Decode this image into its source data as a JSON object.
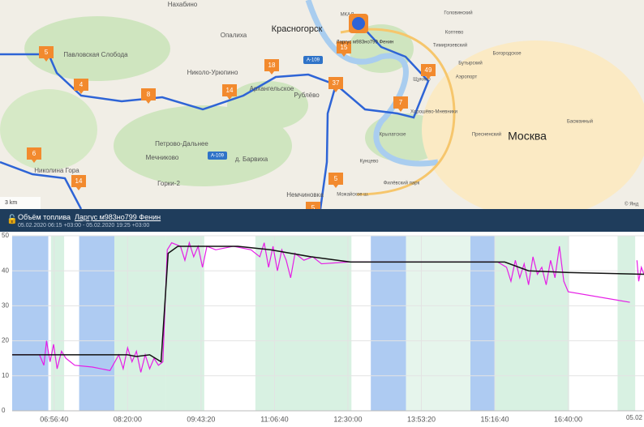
{
  "map": {
    "places": [
      "Нахабино",
      "Красногорск",
      "Павловская Слобода",
      "Опалиха",
      "Николо-Урюпино",
      "Архангельское",
      "Рублёво",
      "Петрово-Дальнее",
      "Мечниково",
      "д. Барвиха",
      "Горки-2",
      "Николина Гора",
      "Немчиновка",
      "Москва",
      "Щукино",
      "Аэропорт",
      "Тимирязевский",
      "Бутырский",
      "Богородское",
      "Пресненский",
      "Басманный",
      "Хорошёво-Мневники",
      "Крылатское",
      "Кунцево",
      "Головинский",
      "Коптево",
      "Филёвский парк"
    ],
    "roads": [
      "A-109",
      "A-109",
      "МКАД",
      "Можайское ш."
    ],
    "markers": [
      "5",
      "4",
      "8",
      "14",
      "18",
      "15",
      "37",
      "49",
      "7",
      "6",
      "14",
      "5",
      "5"
    ],
    "vehicle_label": "Ларгус м983но799 Фенин",
    "scale_label": "3 km",
    "copyright": "© Янд"
  },
  "chart_header": {
    "title": "Объём топлива",
    "vehicle": "Ларгус м983но799 Фенин",
    "period": "05.02.2020 06:15 +03:00 - 05.02.2020 19:25 +03:00"
  },
  "chart_data": {
    "type": "line",
    "xlim": [
      "06:09:00",
      "18:06:00"
    ],
    "ylim": [
      0,
      50
    ],
    "yticks": [
      0,
      10,
      20,
      30,
      40,
      50
    ],
    "xticks": [
      "06:56:40",
      "08:20:00",
      "09:43:20",
      "11:06:40",
      "12:30:00",
      "13:53:20",
      "15:16:40",
      "16:40:00"
    ],
    "date_label": "05.02",
    "grid": true,
    "bands": [
      {
        "start": "06:09:00",
        "end": "06:50:00",
        "color": "#aecbf2"
      },
      {
        "start": "06:53:00",
        "end": "07:08:00",
        "color": "#d8f1e2"
      },
      {
        "start": "07:25:00",
        "end": "08:05:00",
        "color": "#aecbf2"
      },
      {
        "start": "08:05:00",
        "end": "09:03:00",
        "color": "#d8f1e2"
      },
      {
        "start": "09:03:00",
        "end": "09:47:00",
        "color": "#d8f1e2"
      },
      {
        "start": "10:45:00",
        "end": "12:34:00",
        "color": "#d8f1e2"
      },
      {
        "start": "12:56:00",
        "end": "13:36:00",
        "color": "#aecbf2"
      },
      {
        "start": "13:36:00",
        "end": "14:49:00",
        "color": "#e6f5ec"
      },
      {
        "start": "14:49:00",
        "end": "15:17:00",
        "color": "#aecbf2"
      },
      {
        "start": "15:17:00",
        "end": "16:41:00",
        "color": "#d8f1e2"
      },
      {
        "start": "17:36:00",
        "end": "17:56:00",
        "color": "#d8f1e2"
      }
    ],
    "series": [
      {
        "color": "#e61ee6",
        "x": [
          "06:09:00",
          "06:40:00",
          "06:45:00",
          "06:48:00",
          "06:52:00",
          "06:56:00",
          "07:00:00",
          "07:05:00",
          "07:10:00",
          "07:15:00",
          "07:20:00",
          "07:40:00",
          "08:00:00",
          "08:10:00",
          "08:15:00",
          "08:20:00",
          "08:25:00",
          "08:30:00",
          "08:35:00",
          "08:40:00",
          "08:45:00",
          "08:50:00",
          "08:55:00",
          "09:00:00",
          "09:05:00",
          "09:10:00",
          "09:20:00",
          "09:25:00",
          "09:30:00",
          "09:35:00",
          "09:40:00",
          "09:45:00",
          "09:50:00",
          "10:00:00",
          "10:20:00",
          "10:40:00",
          "10:50:00",
          "10:55:00",
          "11:00:00",
          "11:05:00",
          "11:10:00",
          "11:15:00",
          "11:20:00",
          "11:25:00",
          "11:30:00",
          "11:40:00",
          "11:50:00",
          "12:00:00",
          "12:30:00",
          "15:20:00",
          "15:30:00",
          "15:35:00",
          "15:40:00",
          "15:45:00",
          "15:50:00",
          "15:55:00",
          "16:00:00",
          "16:05:00",
          "16:10:00",
          "16:15:00",
          "16:20:00",
          "16:25:00",
          "16:30:00",
          "16:35:00",
          "16:40:00",
          "17:50:00",
          "17:52:00",
          "17:58:00",
          "18:00:00",
          "18:03:00",
          "18:06:00"
        ],
        "values": [
          16,
          16,
          13,
          20,
          14,
          19,
          12,
          17,
          15,
          14,
          13,
          12.5,
          11.5,
          16,
          12,
          18,
          14,
          17,
          11,
          16,
          12,
          15,
          13,
          14,
          46,
          48,
          47,
          43,
          48,
          44,
          47,
          41,
          47,
          46,
          47,
          46,
          44,
          48,
          41,
          47,
          40,
          46,
          43,
          38,
          45,
          43,
          44,
          42,
          42.5,
          42.5,
          41,
          37,
          43,
          38,
          42,
          36,
          44,
          39,
          41,
          36,
          43,
          38,
          47,
          37,
          34,
          31,
          null,
          43,
          37,
          41,
          39
        ]
      },
      {
        "color": "#111111",
        "x": [
          "06:09:00",
          "08:20:00",
          "08:30:00",
          "08:45:00",
          "08:58:00",
          "09:06:00",
          "09:17:00",
          "10:25:00",
          "11:02:00",
          "11:48:00",
          "12:33:00",
          "15:28:00",
          "15:55:00",
          "16:41:00",
          "18:06:00"
        ],
        "values": [
          16,
          16,
          15.5,
          16,
          14,
          45,
          47,
          47,
          46,
          44,
          42.5,
          42.5,
          40,
          39.5,
          39
        ]
      }
    ]
  }
}
